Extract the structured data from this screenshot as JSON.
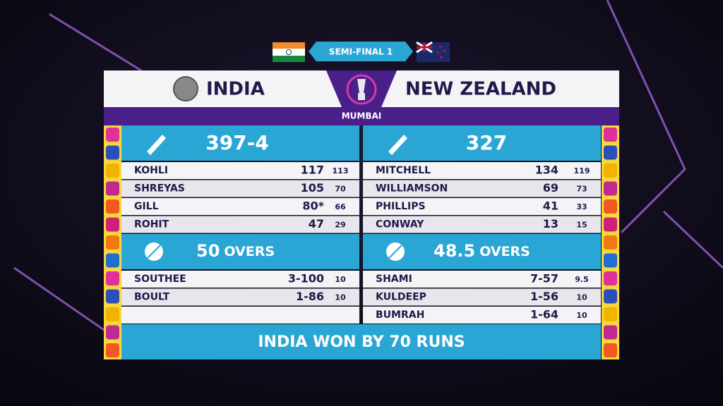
{
  "header": {
    "stage": "SEMI-FINAL 1",
    "venue": "MUMBAI",
    "result": "INDIA WON BY 70 RUNS"
  },
  "innings": [
    {
      "team": "INDIA",
      "score": "397-4",
      "overs": "50",
      "overs_label": "OVERS",
      "batting": [
        [
          "KOHLI",
          "117",
          "113"
        ],
        [
          "SHREYAS",
          "105",
          "70"
        ],
        [
          "GILL",
          "80*",
          "66"
        ],
        [
          "ROHIT",
          "47",
          "29"
        ]
      ],
      "bowling": [
        [
          "SOUTHEE",
          "3-100",
          "10"
        ],
        [
          "BOULT",
          "1-86",
          "10"
        ]
      ]
    },
    {
      "team": "NEW ZEALAND",
      "score": "327",
      "overs": "48.5",
      "overs_label": "OVERS",
      "batting": [
        [
          "MITCHELL",
          "134",
          "119"
        ],
        [
          "WILLIAMSON",
          "69",
          "73"
        ],
        [
          "PHILLIPS",
          "41",
          "33"
        ],
        [
          "CONWAY",
          "13",
          "15"
        ]
      ],
      "bowling": [
        [
          "SHAMI",
          "7-57",
          "9.5"
        ],
        [
          "KULDEEP",
          "1-56",
          "10"
        ],
        [
          "BUMRAH",
          "1-64",
          "10"
        ]
      ]
    }
  ]
}
